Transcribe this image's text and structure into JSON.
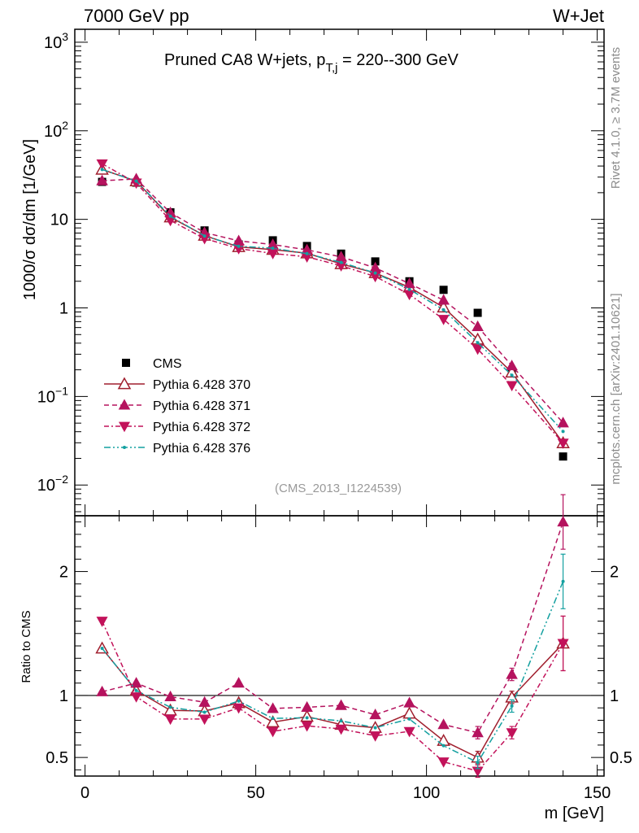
{
  "header": {
    "left": "7000 GeV pp",
    "right": "W+Jet"
  },
  "chart_data": {
    "type": "line",
    "title": "Pruned CA8 W+jets, p_{T,j} = 220--300 GeV",
    "title_main": "Pruned CA8 W+jets, p",
    "title_sub": "T,j",
    "title_rest": " = 220--300 GeV",
    "analysis_label": "(CMS_2013_I1224539)",
    "side_labels": {
      "rivet": "Rivet 4.1.0, ≥ 3.7M events",
      "mcplots": "mcplots.cern.ch [arXiv:2401.10621]"
    },
    "ylabel_main": "1000/σ dσ/dm [1/GeV]",
    "ylabel_ratio": "Ratio to CMS",
    "xlabel": "m [GeV]",
    "xlim": [
      -3,
      152
    ],
    "ylim_main": [
      0.0045,
      1400
    ],
    "ylim_ratio": [
      0.35,
      2.45
    ],
    "yscale_main": "log",
    "xticks": [
      0,
      50,
      100,
      150
    ],
    "main_yticks": [
      {
        "value": 0.01,
        "base": "10",
        "exp": "−2"
      },
      {
        "value": 0.1,
        "base": "10",
        "exp": "−1"
      },
      {
        "value": 1,
        "base": "1",
        "exp": ""
      },
      {
        "value": 10,
        "base": "10",
        "exp": ""
      },
      {
        "value": 100,
        "base": "10",
        "exp": "2"
      },
      {
        "value": 1000,
        "base": "10",
        "exp": "3"
      }
    ],
    "ratio_yticks": [
      {
        "value": 0.5,
        "label": "0.5"
      },
      {
        "value": 1,
        "label": "1"
      },
      {
        "value": 2,
        "label": "2"
      }
    ],
    "x": [
      5,
      15,
      25,
      35,
      45,
      55,
      65,
      75,
      85,
      95,
      105,
      115,
      125,
      140
    ],
    "data": {
      "name": "CMS",
      "values": [
        26.5,
        26.0,
        12.0,
        7.5,
        5.2,
        5.8,
        5.0,
        4.1,
        3.35,
        2.0,
        1.6,
        0.88,
        0.19,
        0.021
      ]
    },
    "series": [
      {
        "name": "Pythia 6.428 370",
        "color": "#a01f2e",
        "dash": "",
        "marker": "triangle-up-open",
        "ratio": [
          1.38,
          1.04,
          0.88,
          0.875,
          0.94,
          0.785,
          0.83,
          0.765,
          0.74,
          0.855,
          0.635,
          0.5,
          0.985,
          1.42
        ]
      },
      {
        "name": "Pythia 6.428 371",
        "color": "#b5135e",
        "dash": "6,4",
        "marker": "triangle-up",
        "ratio": [
          1.03,
          1.1,
          0.99,
          0.945,
          1.1,
          0.895,
          0.905,
          0.92,
          0.845,
          0.94,
          0.765,
          0.7,
          1.17,
          2.4
        ]
      },
      {
        "name": "Pythia 6.428 372",
        "color": "#c2125a",
        "dash": "6,3,2,3",
        "marker": "triangle-down",
        "ratio": [
          1.6,
          0.99,
          0.81,
          0.81,
          0.9,
          0.71,
          0.755,
          0.73,
          0.675,
          0.71,
          0.465,
          0.39,
          0.7,
          1.42
        ]
      },
      {
        "name": "Pythia 6.428 376",
        "color": "#14a0a0",
        "dash": "8,3,2,3,2,3",
        "marker": "dot",
        "ratio": [
          1.38,
          1.04,
          0.905,
          0.865,
          0.955,
          0.815,
          0.82,
          0.795,
          0.74,
          0.81,
          0.595,
          0.46,
          0.915,
          1.92
        ]
      }
    ]
  }
}
